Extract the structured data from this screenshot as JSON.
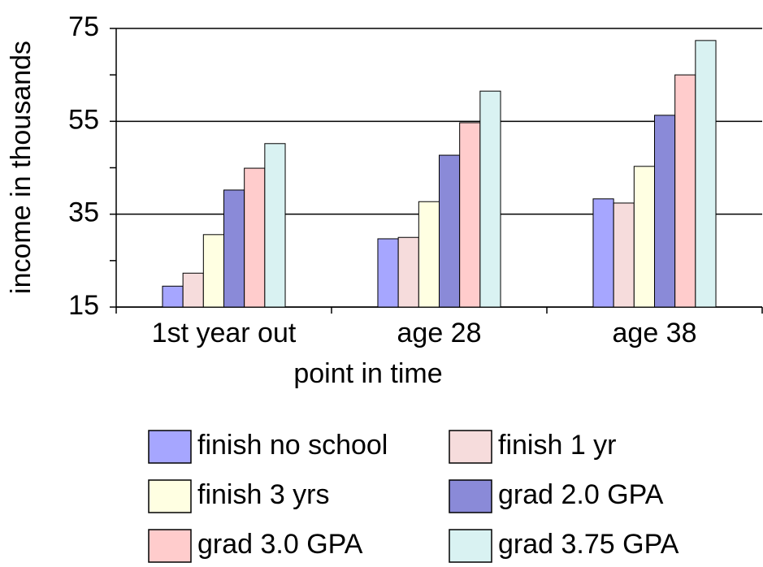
{
  "chart_data": {
    "type": "bar",
    "xlabel": "point in time",
    "ylabel": "income in thousands",
    "categories": [
      "1st year out",
      "age 28",
      "age 38"
    ],
    "series": [
      {
        "name": "finish no school",
        "color": "#a6a6ff",
        "values": [
          19.5,
          29.7,
          38.3
        ]
      },
      {
        "name": "finish 1 yr",
        "color": "#f6dcdc",
        "values": [
          22.3,
          30,
          37.4
        ]
      },
      {
        "name": "finish 3 yrs",
        "color": "#ffffe2",
        "values": [
          30.6,
          37.7,
          45.3
        ]
      },
      {
        "name": "grad 2.0 GPA",
        "color": "#8a8ad8",
        "values": [
          40.2,
          47.7,
          56.3
        ]
      },
      {
        "name": "grad 3.0 GPA",
        "color": "#ffcccc",
        "values": [
          44.9,
          54.7,
          65
        ]
      },
      {
        "name": "grad 3.75 GPA",
        "color": "#d9f2f2",
        "values": [
          50.2,
          61.5,
          72.4
        ]
      }
    ],
    "ylim": [
      15,
      75
    ],
    "yticks": [
      15,
      35,
      55,
      75
    ],
    "yminorticks": [
      25,
      45,
      65
    ],
    "grid": true
  }
}
